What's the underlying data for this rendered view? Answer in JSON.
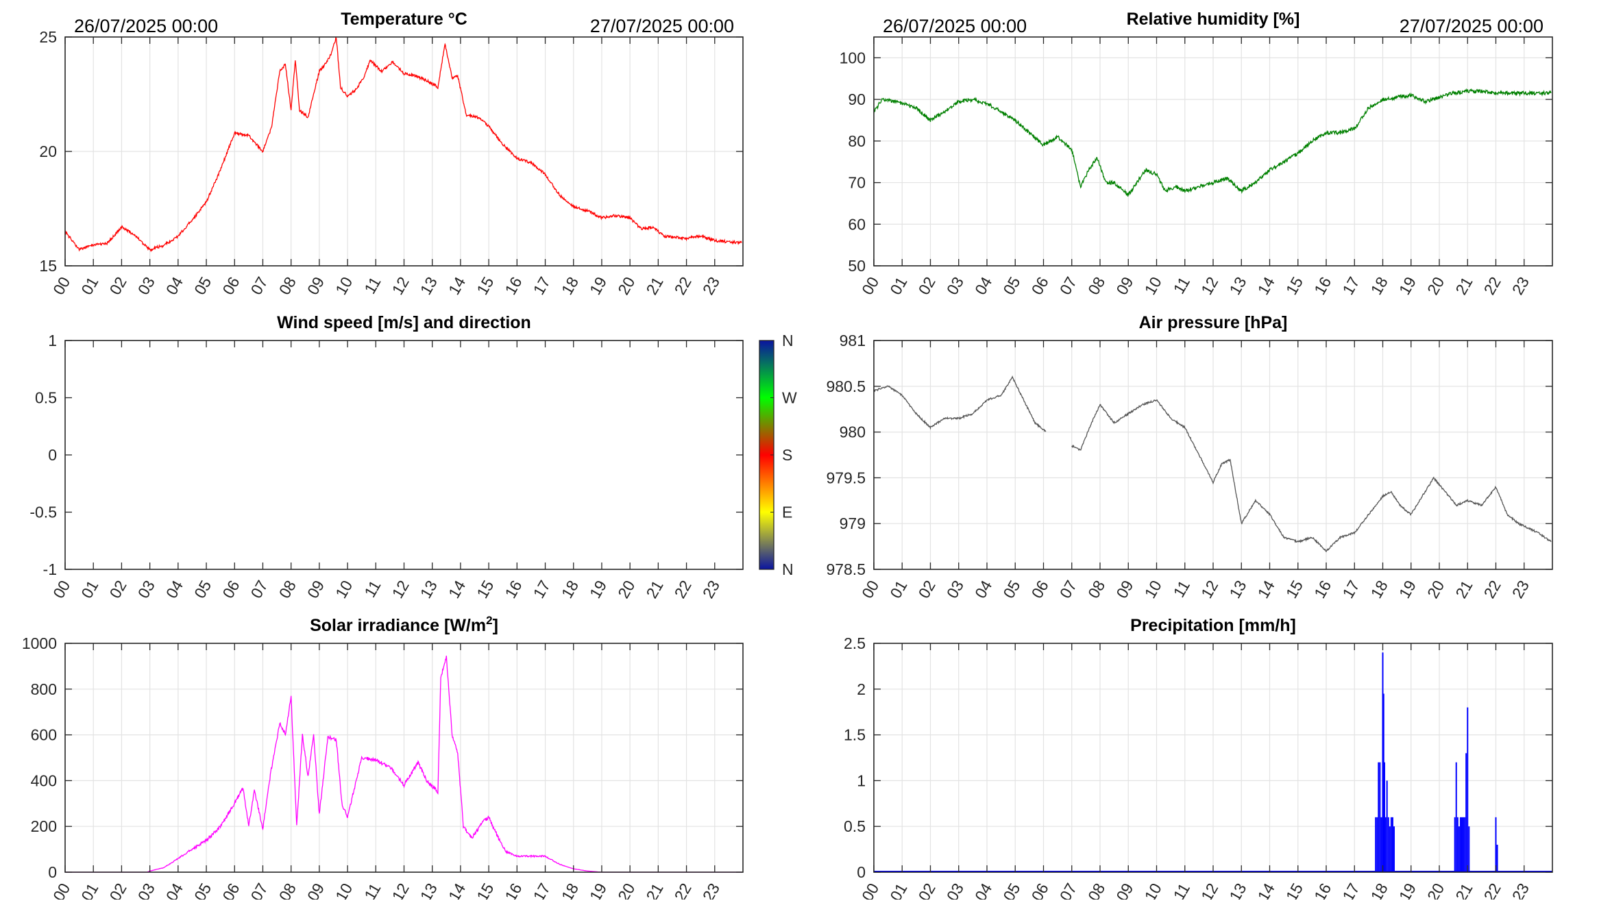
{
  "chart_data": [
    {
      "id": "temperature",
      "type": "line",
      "title": "Temperature °C",
      "date_start": "26/07/2025 00:00",
      "date_end": "27/07/2025 00:00",
      "xlabel": "",
      "ylabel": "",
      "xlim": [
        0,
        24
      ],
      "ylim": [
        15,
        25
      ],
      "yticks": [
        "15",
        "20",
        "25"
      ],
      "xticks": [
        "00",
        "01",
        "02",
        "03",
        "04",
        "05",
        "06",
        "07",
        "08",
        "09",
        "10",
        "11",
        "12",
        "13",
        "14",
        "15",
        "16",
        "17",
        "18",
        "19",
        "20",
        "21",
        "22",
        "23"
      ],
      "grid": true,
      "color": "#ff0000",
      "x": [
        0,
        0.5,
        1,
        1.5,
        2,
        2.5,
        3,
        3.5,
        4,
        4.5,
        5,
        5.5,
        6,
        6.5,
        7,
        7.3,
        7.6,
        7.8,
        8.0,
        8.15,
        8.3,
        8.6,
        8.8,
        9.0,
        9.2,
        9.4,
        9.6,
        9.75,
        10,
        10.3,
        10.6,
        10.8,
        11.2,
        11.6,
        12,
        12.4,
        12.8,
        13.2,
        13.45,
        13.7,
        13.9,
        14.2,
        14.6,
        15,
        15.5,
        16,
        16.5,
        17,
        17.5,
        18,
        18.5,
        19,
        19.5,
        20,
        20.4,
        20.8,
        21.2,
        22,
        22.5,
        23,
        23.95
      ],
      "values": [
        16.5,
        15.7,
        15.9,
        16.0,
        16.7,
        16.3,
        15.7,
        15.9,
        16.3,
        17.0,
        17.8,
        19.2,
        20.8,
        20.7,
        20.0,
        21.0,
        23.5,
        23.8,
        21.8,
        24.0,
        21.8,
        21.5,
        22.5,
        23.5,
        23.8,
        24.2,
        25.0,
        22.8,
        22.4,
        22.7,
        23.3,
        24.0,
        23.5,
        23.9,
        23.4,
        23.3,
        23.1,
        22.8,
        24.7,
        23.2,
        23.3,
        21.6,
        21.5,
        21.1,
        20.3,
        19.7,
        19.5,
        19.0,
        18.1,
        17.6,
        17.4,
        17.1,
        17.2,
        17.1,
        16.6,
        16.7,
        16.3,
        16.2,
        16.3,
        16.1,
        16.0
      ]
    },
    {
      "id": "humidity",
      "type": "line",
      "title": "Relative humidity [%]",
      "date_start": "26/07/2025 00:00",
      "date_end": "27/07/2025 00:00",
      "xlabel": "",
      "ylabel": "",
      "xlim": [
        0,
        24
      ],
      "ylim": [
        50,
        105
      ],
      "yticks": [
        "50",
        "60",
        "70",
        "80",
        "90",
        "100"
      ],
      "xticks": [
        "00",
        "01",
        "02",
        "03",
        "04",
        "05",
        "06",
        "07",
        "08",
        "09",
        "10",
        "11",
        "12",
        "13",
        "14",
        "15",
        "16",
        "17",
        "18",
        "19",
        "20",
        "21",
        "22",
        "23"
      ],
      "grid": true,
      "color": "#008000",
      "x": [
        0,
        0.3,
        1,
        1.5,
        2,
        2.5,
        3,
        3.5,
        4,
        4.5,
        5,
        5.5,
        6,
        6.5,
        7,
        7.3,
        7.6,
        7.9,
        8.2,
        8.5,
        9,
        9.3,
        9.6,
        10,
        10.3,
        10.7,
        11,
        11.5,
        12,
        12.5,
        13,
        13.5,
        14,
        14.5,
        15,
        15.5,
        16,
        16.5,
        17,
        17.5,
        18,
        18.5,
        19,
        19.5,
        20,
        20.5,
        21,
        21.5,
        22,
        23.95
      ],
      "values": [
        87,
        90,
        89,
        88,
        85,
        87,
        89.5,
        90,
        89,
        87,
        85,
        82,
        79,
        81,
        78,
        69,
        73,
        76,
        70,
        70,
        67,
        70,
        73,
        72,
        68,
        69,
        68,
        69,
        70,
        71,
        68,
        70,
        73,
        75,
        77,
        80,
        82,
        82,
        83,
        88,
        90,
        90.5,
        91,
        89.5,
        90.5,
        91.5,
        92,
        92,
        91.5,
        91.5
      ]
    },
    {
      "id": "wind",
      "type": "line",
      "title": "Wind speed [m/s] and direction",
      "xlabel": "",
      "ylabel": "",
      "xlim": [
        0,
        24
      ],
      "ylim": [
        -1,
        1
      ],
      "yticks": [
        "-1",
        "-0.5",
        "0",
        "0.5",
        "1"
      ],
      "xticks": [
        "00",
        "01",
        "02",
        "03",
        "04",
        "05",
        "06",
        "07",
        "08",
        "09",
        "10",
        "11",
        "12",
        "13",
        "14",
        "15",
        "16",
        "17",
        "18",
        "19",
        "20",
        "21",
        "22",
        "23"
      ],
      "grid": false,
      "color": "#000000",
      "x": [],
      "values": [],
      "colorbar": {
        "labels": [
          "N",
          "E",
          "S",
          "W",
          "N"
        ],
        "colors": [
          "#0a14a0",
          "#ffff00",
          "#ff0000",
          "#00ff00",
          "#0a14a0"
        ]
      }
    },
    {
      "id": "pressure",
      "type": "line",
      "title": "Air pressure [hPa]",
      "xlabel": "",
      "ylabel": "",
      "xlim": [
        0,
        24
      ],
      "ylim": [
        978.5,
        981
      ],
      "yticks": [
        "978.5",
        "979",
        "979.5",
        "980",
        "980.5",
        "981"
      ],
      "xticks": [
        "00",
        "01",
        "02",
        "03",
        "04",
        "05",
        "06",
        "07",
        "08",
        "09",
        "10",
        "11",
        "12",
        "13",
        "14",
        "15",
        "16",
        "17",
        "18",
        "19",
        "20",
        "21",
        "22",
        "23"
      ],
      "grid": true,
      "color": "#555555",
      "x": [
        0,
        0.5,
        1,
        1.5,
        2,
        2.5,
        3,
        3.5,
        4,
        4.5,
        4.9,
        5.3,
        5.7,
        6.1,
        6.5,
        7,
        7.3,
        7.7,
        8,
        8.5,
        9,
        9.5,
        10,
        10.5,
        11,
        11.5,
        12,
        12.3,
        12.6,
        13,
        13.5,
        14,
        14.5,
        15,
        15.5,
        16,
        16.5,
        17,
        17.5,
        18,
        18.3,
        18.6,
        19,
        19.5,
        19.8,
        20.2,
        20.6,
        21,
        21.5,
        22,
        22.4,
        22.8,
        23.5,
        23.95
      ],
      "values": [
        980.45,
        980.5,
        980.4,
        980.2,
        980.05,
        980.15,
        980.15,
        980.2,
        980.35,
        980.4,
        980.6,
        980.35,
        980.1,
        980.0,
        null,
        979.85,
        979.8,
        980.1,
        980.3,
        980.1,
        980.2,
        980.3,
        980.35,
        980.15,
        980.05,
        979.75,
        979.45,
        979.65,
        979.7,
        979.0,
        979.25,
        979.1,
        978.85,
        978.8,
        978.85,
        978.7,
        978.85,
        978.9,
        979.1,
        979.3,
        979.35,
        979.2,
        979.1,
        979.35,
        979.5,
        979.35,
        979.2,
        979.25,
        979.2,
        979.4,
        979.1,
        979.0,
        978.9,
        978.8
      ]
    },
    {
      "id": "solar",
      "type": "line",
      "title": "Solar irradiance [W/m",
      "title_sup": "2",
      "title_end": "]",
      "xlabel": "",
      "ylabel": "",
      "xlim": [
        0,
        24
      ],
      "ylim": [
        0,
        1000
      ],
      "yticks": [
        "0",
        "200",
        "400",
        "600",
        "800",
        "1000"
      ],
      "xticks": [
        "00",
        "01",
        "02",
        "03",
        "04",
        "05",
        "06",
        "07",
        "08",
        "09",
        "10",
        "11",
        "12",
        "13",
        "14",
        "15",
        "16",
        "17",
        "18",
        "19",
        "20",
        "21",
        "22",
        "23"
      ],
      "grid": true,
      "color": "#ff00ff",
      "x": [
        0,
        2.9,
        3,
        3.5,
        4,
        4.5,
        5,
        5.5,
        6,
        6.3,
        6.5,
        6.7,
        7,
        7.3,
        7.6,
        7.8,
        8.0,
        8.2,
        8.4,
        8.6,
        8.8,
        9,
        9.3,
        9.6,
        9.8,
        10,
        10.5,
        11,
        11.5,
        12,
        12.5,
        12.8,
        13.2,
        13.3,
        13.5,
        13.7,
        13.9,
        14.1,
        14.4,
        14.8,
        15,
        15.3,
        15.6,
        16,
        16.5,
        17,
        17.5,
        18,
        18.5,
        19,
        23.95
      ],
      "values": [
        0,
        0,
        5,
        20,
        60,
        100,
        140,
        200,
        300,
        370,
        200,
        360,
        190,
        450,
        650,
        600,
        770,
        200,
        600,
        420,
        600,
        250,
        590,
        580,
        300,
        240,
        500,
        490,
        460,
        380,
        480,
        400,
        350,
        850,
        940,
        600,
        520,
        200,
        150,
        220,
        240,
        160,
        90,
        70,
        70,
        70,
        35,
        15,
        5,
        0,
        0
      ]
    },
    {
      "id": "precipitation",
      "type": "bar",
      "title": "Precipitation [mm/h]",
      "xlabel": "",
      "ylabel": "",
      "xlim": [
        0,
        24
      ],
      "ylim": [
        0,
        2.5
      ],
      "yticks": [
        "0",
        "0.5",
        "1",
        "1.5",
        "2",
        "2.5"
      ],
      "xticks": [
        "00",
        "01",
        "02",
        "03",
        "04",
        "05",
        "06",
        "07",
        "08",
        "09",
        "10",
        "11",
        "12",
        "13",
        "14",
        "15",
        "16",
        "17",
        "18",
        "19",
        "20",
        "21",
        "22",
        "23"
      ],
      "grid": true,
      "color": "#0000ff",
      "x": [
        17.75,
        17.8,
        17.85,
        17.9,
        17.95,
        18.0,
        18.03,
        18.06,
        18.1,
        18.15,
        18.2,
        18.25,
        18.3,
        18.35,
        18.4,
        20.55,
        20.6,
        20.65,
        20.7,
        20.75,
        20.8,
        20.85,
        20.9,
        20.95,
        21.0,
        21.05,
        22.0,
        22.05
      ],
      "values": [
        0.6,
        0.6,
        1.2,
        1.2,
        0.6,
        2.4,
        1.95,
        1.2,
        0.6,
        1.0,
        0.6,
        0.5,
        0.6,
        0.6,
        0.5,
        0.6,
        1.2,
        0.6,
        0.5,
        0.6,
        0.6,
        0.6,
        0.6,
        1.3,
        1.8,
        0.5,
        0.6,
        0.3
      ]
    }
  ]
}
